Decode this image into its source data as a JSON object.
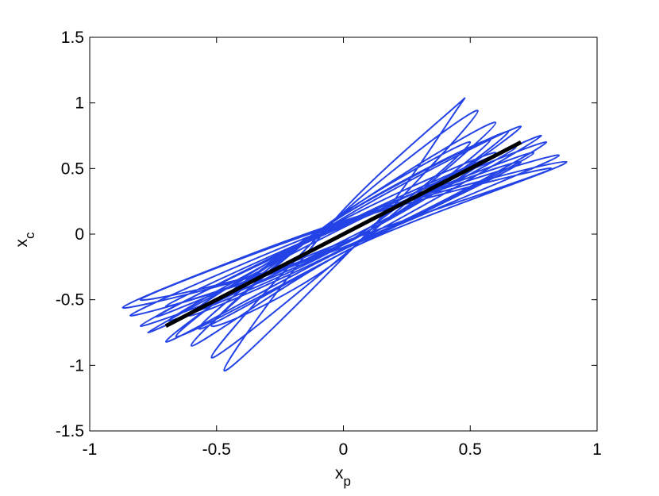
{
  "chart_data": {
    "type": "line",
    "xlabel": "x",
    "xlabel_sub": "p",
    "ylabel": "x",
    "ylabel_sub": "c",
    "xlim": [
      -1,
      1
    ],
    "ylim": [
      -1.5,
      1.5
    ],
    "xticks": [
      -1,
      -0.5,
      0,
      0.5,
      1
    ],
    "yticks": [
      -1.5,
      -1,
      -0.5,
      0,
      0.5,
      1,
      1.5
    ],
    "grid": false,
    "series": [
      {
        "color": "#2343e6",
        "smooth": true,
        "x": [
          0.48,
          -0.03,
          -0.47,
          0.03,
          0.53,
          -0.02,
          -0.52,
          0.02,
          0.6,
          -0.04,
          -0.6,
          0.04,
          0.88,
          0,
          -0.87,
          0,
          0.8,
          0,
          -0.8,
          0,
          0.7,
          -0.02,
          -0.7,
          0.02,
          0.85,
          0.01,
          -0.84,
          -0.01,
          0.65,
          -0.03,
          -0.66,
          0.03,
          0.75,
          0,
          -0.74,
          0,
          0.82,
          0.02,
          -0.8,
          -0.02,
          0.58,
          -0.02,
          -0.57,
          0.02,
          0.7,
          0,
          -0.7,
          0,
          0.6,
          -0.01,
          -0.61,
          0.01,
          0.78,
          0,
          -0.77,
          0,
          0.68,
          0,
          -0.69,
          0,
          0.5,
          -0.03,
          -0.52,
          0.03,
          0.48
        ],
        "values": [
          1.04,
          0.12,
          -1.04,
          -0.12,
          0.94,
          0.13,
          -0.94,
          -0.13,
          0.85,
          0.1,
          -0.85,
          -0.1,
          0.55,
          0.1,
          -0.56,
          -0.1,
          0.7,
          0.08,
          -0.7,
          -0.08,
          0.82,
          0.1,
          -0.82,
          -0.1,
          0.6,
          0.09,
          -0.62,
          -0.09,
          0.78,
          0.11,
          -0.78,
          -0.11,
          0.62,
          0.06,
          -0.63,
          -0.06,
          0.5,
          0.1,
          -0.5,
          -0.1,
          0.72,
          0.12,
          -0.72,
          -0.12,
          0.55,
          0.07,
          -0.55,
          -0.07,
          0.62,
          0.1,
          -0.62,
          -0.1,
          0.75,
          0.05,
          -0.75,
          -0.05,
          0.66,
          0.08,
          -0.66,
          -0.08,
          0.7,
          0.12,
          -0.7,
          -0.12,
          1.04
        ]
      },
      {
        "color": "#000000",
        "smooth": false,
        "x": [
          -0.7,
          0.7
        ],
        "values": [
          -0.7,
          0.7
        ]
      }
    ]
  }
}
